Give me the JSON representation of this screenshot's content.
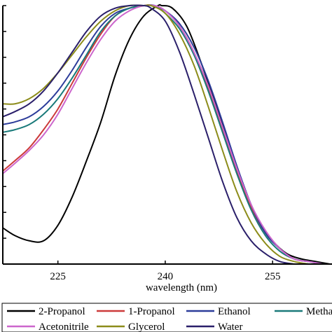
{
  "chart_data": {
    "type": "line",
    "title": "",
    "xlabel": "wavelength (nm)",
    "ylabel": "",
    "xlim": [
      217.3,
      263.3
    ],
    "ylim": [
      0,
      1
    ],
    "x_ticks": [
      225,
      240,
      255
    ],
    "x_tick_labels": [
      "225",
      "240",
      "255"
    ],
    "y_ticks": [
      0,
      0.1,
      0.2,
      0.3,
      0.4,
      0.5,
      0.6,
      0.7,
      0.8,
      0.9,
      1.0
    ],
    "grid": false,
    "legend_position": "bottom",
    "series": [
      {
        "name": "2-Propanol",
        "color": "#000000",
        "x": [
          217.3,
          219,
          221,
          223,
          225,
          227,
          229,
          231,
          233,
          235,
          237,
          239,
          239.5,
          241,
          243,
          245,
          247,
          249,
          251,
          253,
          255,
          257,
          259,
          261,
          263
        ],
        "y": [
          0.14,
          0.11,
          0.09,
          0.09,
          0.15,
          0.26,
          0.4,
          0.55,
          0.73,
          0.87,
          0.96,
          1.0,
          1.0,
          0.99,
          0.92,
          0.78,
          0.62,
          0.45,
          0.29,
          0.17,
          0.09,
          0.04,
          0.02,
          0.01,
          0.0
        ]
      },
      {
        "name": "1-Propanol",
        "color": "#cc3a3a",
        "x": [
          217.3,
          219,
          221,
          223,
          225,
          227,
          229,
          231,
          233,
          235,
          237,
          238.5,
          240,
          242,
          244,
          246,
          248,
          250,
          252,
          254,
          256,
          258,
          260,
          262
        ],
        "y": [
          0.36,
          0.4,
          0.45,
          0.52,
          0.6,
          0.7,
          0.8,
          0.89,
          0.96,
          0.99,
          1.0,
          1.0,
          0.98,
          0.92,
          0.82,
          0.68,
          0.52,
          0.36,
          0.22,
          0.12,
          0.06,
          0.02,
          0.01,
          0.0
        ]
      },
      {
        "name": "Ethanol",
        "color": "#2c3c9a",
        "x": [
          217.3,
          219,
          221,
          223,
          225,
          227,
          229,
          231,
          233,
          235,
          237,
          238.5,
          240,
          242,
          244,
          246,
          248,
          250,
          252,
          254,
          256,
          258,
          260,
          262
        ],
        "y": [
          0.54,
          0.55,
          0.57,
          0.61,
          0.67,
          0.75,
          0.84,
          0.92,
          0.97,
          0.99,
          1.0,
          1.0,
          0.98,
          0.93,
          0.84,
          0.71,
          0.55,
          0.38,
          0.23,
          0.12,
          0.06,
          0.02,
          0.01,
          0.0
        ]
      },
      {
        "name": "Methanol",
        "color": "#1a7a7a",
        "x": [
          217.3,
          219,
          221,
          223,
          225,
          227,
          229,
          231,
          233,
          235,
          237,
          238.5,
          240,
          242,
          244,
          246,
          248,
          250,
          252,
          254,
          256,
          258,
          260,
          262
        ],
        "y": [
          0.51,
          0.52,
          0.54,
          0.58,
          0.64,
          0.72,
          0.81,
          0.9,
          0.96,
          0.99,
          1.0,
          1.0,
          0.97,
          0.91,
          0.81,
          0.67,
          0.51,
          0.35,
          0.21,
          0.11,
          0.05,
          0.02,
          0.01,
          0.0
        ]
      },
      {
        "name": "Acetonitrile",
        "color": "#cc66cc",
        "x": [
          217.3,
          219,
          221,
          223,
          225,
          227,
          229,
          231,
          233,
          235,
          237,
          238.5,
          240,
          242,
          244,
          246,
          248,
          250,
          252,
          254,
          256,
          258,
          260,
          262
        ],
        "y": [
          0.35,
          0.39,
          0.44,
          0.5,
          0.58,
          0.68,
          0.78,
          0.87,
          0.94,
          0.98,
          1.0,
          1.0,
          0.98,
          0.92,
          0.82,
          0.69,
          0.53,
          0.37,
          0.23,
          0.13,
          0.06,
          0.02,
          0.01,
          0.0
        ]
      },
      {
        "name": "Glycerol",
        "color": "#8c8c1a",
        "x": [
          217.3,
          219,
          221,
          223,
          225,
          227,
          229,
          231,
          233,
          235,
          237,
          238,
          240,
          242,
          244,
          246,
          248,
          250,
          252,
          254,
          256,
          258,
          260
        ],
        "y": [
          0.62,
          0.62,
          0.64,
          0.68,
          0.74,
          0.81,
          0.88,
          0.94,
          0.98,
          1.0,
          1.0,
          1.0,
          0.97,
          0.89,
          0.77,
          0.61,
          0.44,
          0.28,
          0.16,
          0.08,
          0.03,
          0.01,
          0.0
        ]
      },
      {
        "name": "Water",
        "color": "#2a1f6a",
        "x": [
          217.3,
          219,
          221,
          223,
          225,
          227,
          229,
          231,
          233,
          235,
          237,
          238,
          240,
          242,
          244,
          246,
          248,
          250,
          252,
          254,
          256,
          258
        ],
        "y": [
          0.57,
          0.59,
          0.62,
          0.67,
          0.74,
          0.82,
          0.9,
          0.96,
          0.99,
          1.0,
          1.0,
          0.99,
          0.94,
          0.82,
          0.66,
          0.49,
          0.32,
          0.18,
          0.09,
          0.04,
          0.01,
          0.0
        ]
      }
    ]
  }
}
